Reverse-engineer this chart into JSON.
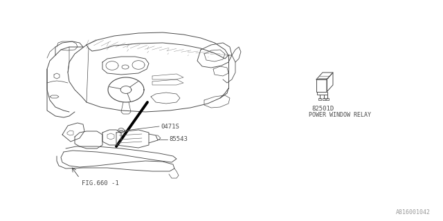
{
  "bg_color": "#ffffff",
  "line_color": "#4a4a4a",
  "text_color": "#4a4a4a",
  "fig_width": 6.4,
  "fig_height": 3.2,
  "dpi": 100,
  "watermark": "A816001042",
  "part_number_relay": "82501D",
  "relay_label": "POWER WINDOW RELAY",
  "part_04715": "0471S",
  "part_85543": "85543",
  "fig_label": "FIG.660 -1"
}
